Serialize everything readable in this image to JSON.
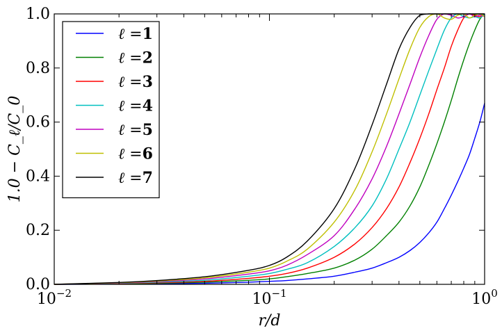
{
  "chart_data": {
    "type": "line",
    "title": "",
    "xlabel": "r/d",
    "ylabel": "1.0 − C_ℓ/C_0",
    "xscale": "log",
    "xlim": [
      0.01,
      1.0
    ],
    "ylim": [
      0.0,
      1.0
    ],
    "x_ticks": [
      {
        "value": 0.01,
        "base": "10",
        "exp": "−2"
      },
      {
        "value": 0.1,
        "base": "10",
        "exp": "−1"
      },
      {
        "value": 1.0,
        "base": "10",
        "exp": "0"
      }
    ],
    "y_ticks": [
      {
        "value": 0.0,
        "label": "0.0"
      },
      {
        "value": 0.2,
        "label": "0.2"
      },
      {
        "value": 0.4,
        "label": "0.4"
      },
      {
        "value": 0.6,
        "label": "0.6"
      },
      {
        "value": 0.8,
        "label": "0.8"
      },
      {
        "value": 1.0,
        "label": "1.0"
      }
    ],
    "grid": false,
    "legend_position": "top-left",
    "x": [
      0.01,
      0.02,
      0.03,
      0.05,
      0.08,
      0.1,
      0.12,
      0.15,
      0.2,
      0.25,
      0.3,
      0.35,
      0.4,
      0.45,
      0.5,
      0.55,
      0.6,
      0.65,
      0.7,
      0.75,
      0.8,
      0.85,
      0.9,
      0.95,
      1.0
    ],
    "series": [
      {
        "name": "1",
        "color": "#0000ff",
        "values": [
          0.0,
          0.001,
          0.002,
          0.004,
          0.008,
          0.011,
          0.014,
          0.02,
          0.03,
          0.045,
          0.06,
          0.08,
          0.1,
          0.125,
          0.155,
          0.19,
          0.23,
          0.28,
          0.33,
          0.38,
          0.43,
          0.48,
          0.54,
          0.6,
          0.67
        ]
      },
      {
        "name": "2",
        "color": "#008000",
        "values": [
          0.0,
          0.002,
          0.004,
          0.008,
          0.015,
          0.02,
          0.028,
          0.04,
          0.06,
          0.09,
          0.13,
          0.18,
          0.23,
          0.29,
          0.36,
          0.44,
          0.52,
          0.6,
          0.68,
          0.76,
          0.83,
          0.89,
          0.94,
          0.98,
          1.0
        ]
      },
      {
        "name": "3",
        "color": "#ff0000",
        "values": [
          0.0,
          0.003,
          0.006,
          0.011,
          0.022,
          0.03,
          0.04,
          0.06,
          0.1,
          0.15,
          0.21,
          0.28,
          0.36,
          0.45,
          0.54,
          0.63,
          0.72,
          0.8,
          0.88,
          0.94,
          0.985,
          1.0,
          0.995,
          0.99,
          1.0
        ]
      },
      {
        "name": "4",
        "color": "#00bfbf",
        "values": [
          0.0,
          0.004,
          0.008,
          0.015,
          0.03,
          0.04,
          0.055,
          0.08,
          0.14,
          0.21,
          0.29,
          0.39,
          0.5,
          0.6,
          0.7,
          0.79,
          0.87,
          0.94,
          0.985,
          1.0,
          0.99,
          0.985,
          0.99,
          0.985,
          1.0
        ]
      },
      {
        "name": "5",
        "color": "#bf00bf",
        "values": [
          0.0,
          0.005,
          0.01,
          0.02,
          0.038,
          0.05,
          0.07,
          0.11,
          0.18,
          0.28,
          0.39,
          0.51,
          0.63,
          0.74,
          0.84,
          0.92,
          0.98,
          1.0,
          0.995,
          0.985,
          0.99,
          1.0,
          0.99,
          0.995,
          0.99
        ]
      },
      {
        "name": "6",
        "color": "#bfbf00",
        "values": [
          0.0,
          0.006,
          0.012,
          0.024,
          0.045,
          0.06,
          0.085,
          0.13,
          0.23,
          0.35,
          0.49,
          0.63,
          0.76,
          0.87,
          0.95,
          0.99,
          1.0,
          0.985,
          0.98,
          0.995,
          1.0,
          0.985,
          0.995,
          1.0,
          0.99
        ]
      },
      {
        "name": "7",
        "color": "#000000",
        "values": [
          0.0,
          0.007,
          0.014,
          0.028,
          0.052,
          0.07,
          0.1,
          0.16,
          0.28,
          0.43,
          0.59,
          0.74,
          0.87,
          0.95,
          0.995,
          1.0,
          1.0,
          1.0,
          1.0,
          1.0,
          1.0,
          1.0,
          1.0,
          1.0,
          1.0
        ]
      }
    ],
    "legend_prefix": "ℓ ="
  }
}
